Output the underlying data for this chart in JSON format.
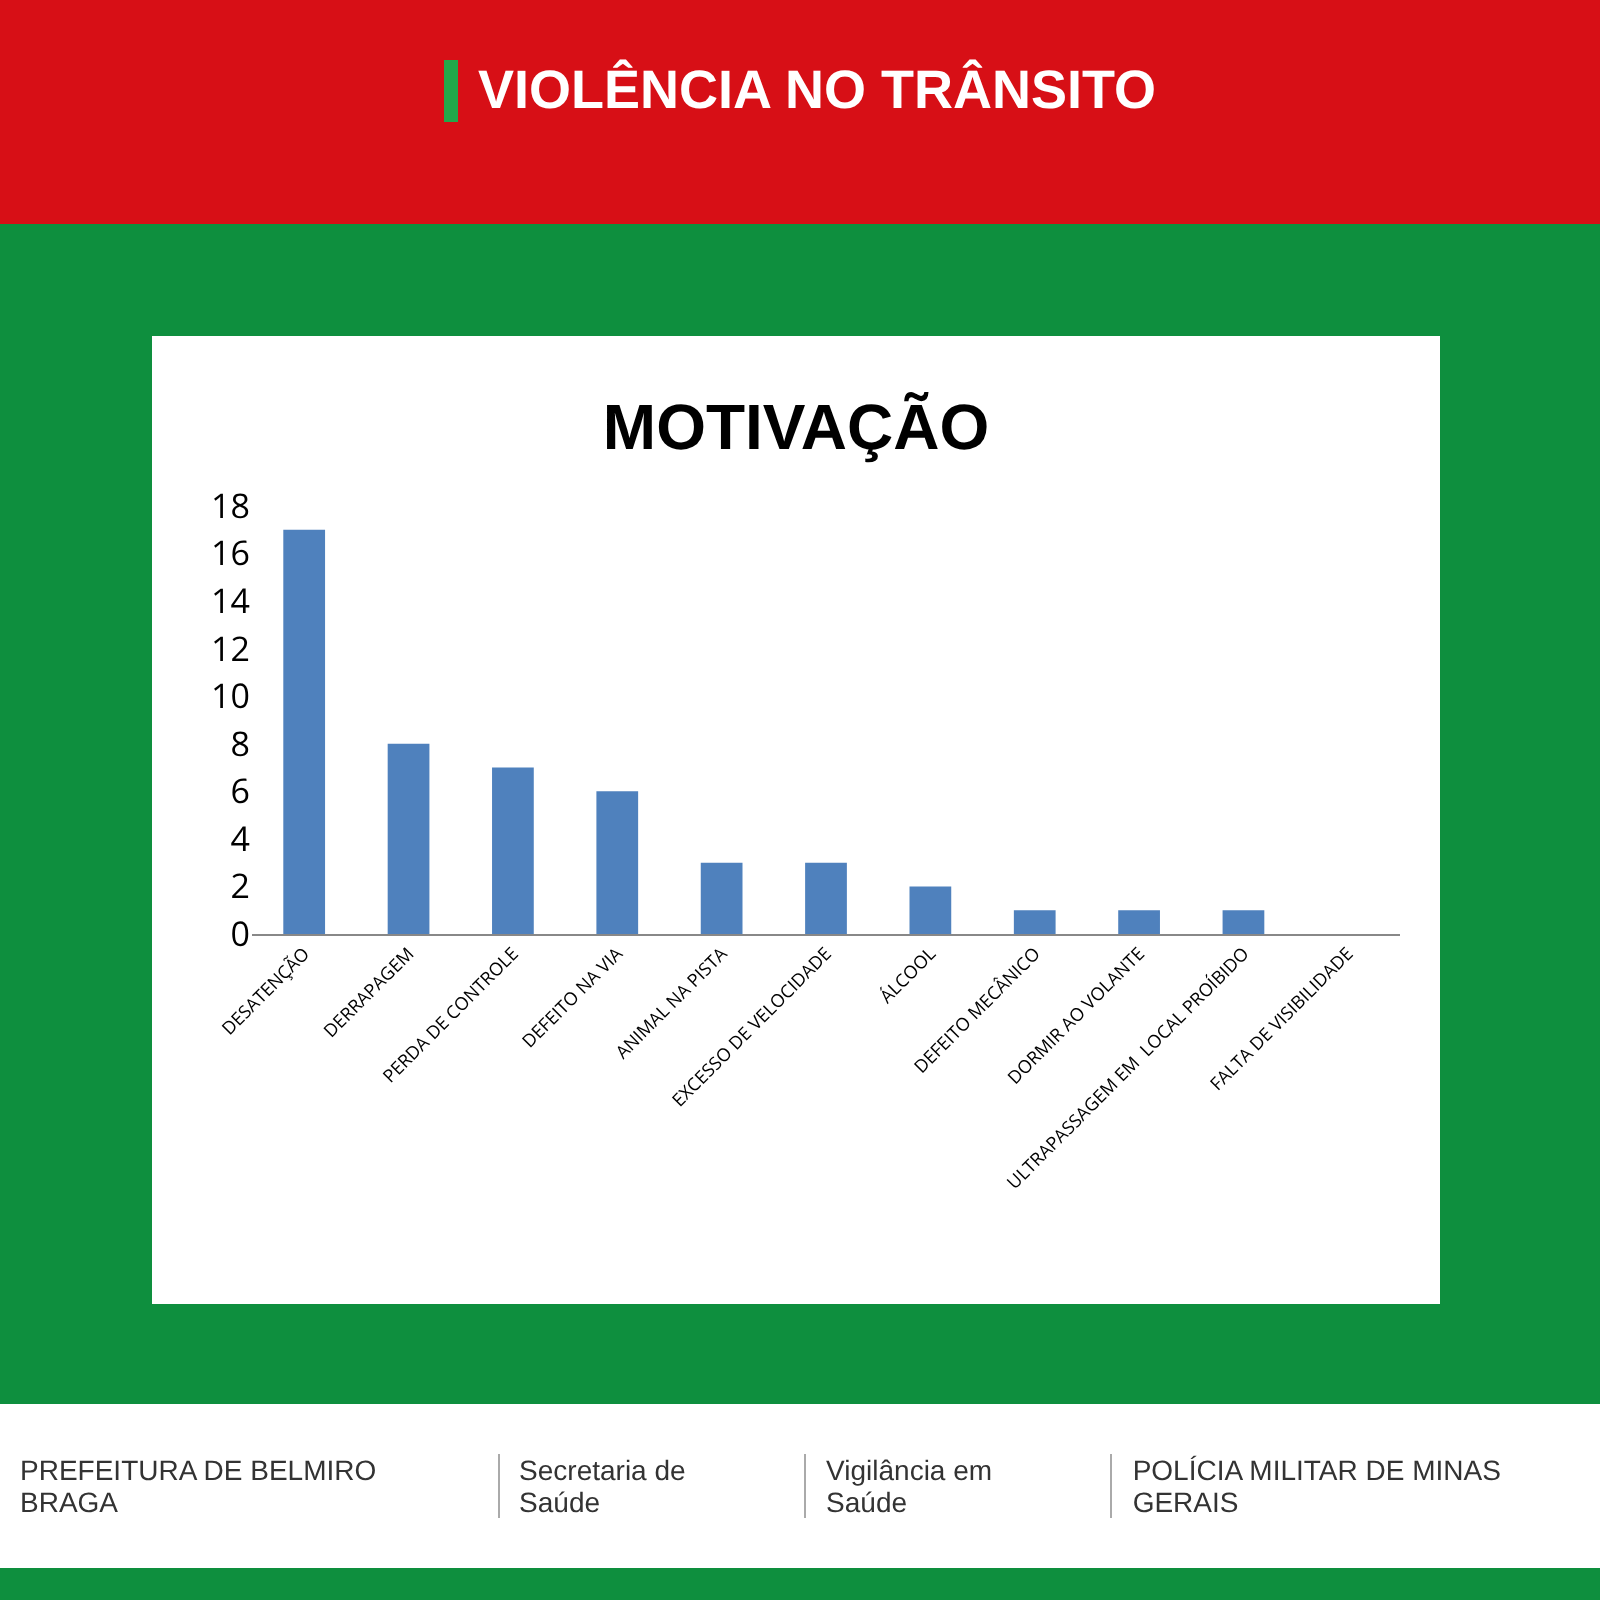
{
  "chart_data": {
    "type": "bar",
    "title": "VIOLÊNCIA NO TRÂNSITO",
    "subtitle": "MOTIVAÇÃO",
    "categories": [
      "DESATENÇÃO",
      "DERRAPAGEM",
      "PERDA DE CONTROLE",
      "DEFEITO NA VIA",
      "ANIMAL NA PISTA",
      "EXCESSO DE VELOCIDADE",
      "ÁLCOOL",
      "DEFEITO MECÂNICO",
      "DORMIR AO VOLANTE",
      "ULTRAPASSAGEM EM  LOCAL PROÍBIDO",
      "FALTA DE VISIBILIDADE"
    ],
    "values": [
      17,
      8,
      7,
      6,
      3,
      3,
      2,
      1,
      1,
      1,
      0
    ],
    "color": "#4f81bd",
    "ylim": [
      0,
      18
    ],
    "yticks": [
      0,
      2,
      4,
      6,
      8,
      10,
      12,
      14,
      16,
      18
    ],
    "grid": false,
    "legend": false,
    "annotations": [
      "PREFEITURA DE BELMIRO BRAGA",
      "Secretaria de Saúde",
      "Vigilância em Saúde",
      "POLÍCIA MILITAR DE MINAS GERAIS"
    ]
  }
}
